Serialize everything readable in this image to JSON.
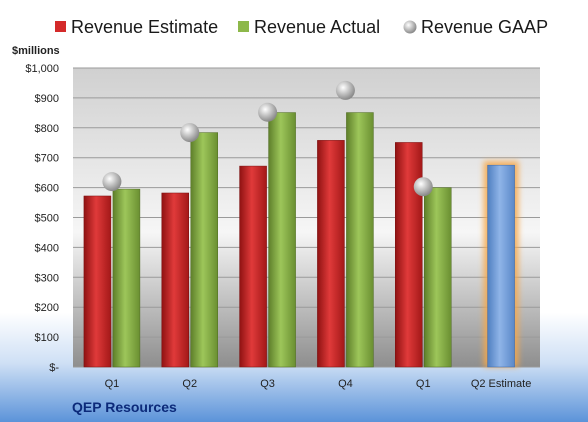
{
  "company": "QEP Resources",
  "chart_data": {
    "type": "bar",
    "title": "",
    "xlabel": "",
    "ylabel": "$millions",
    "ylim": [
      0,
      1000
    ],
    "yticks": [
      0,
      100,
      200,
      300,
      400,
      500,
      600,
      700,
      800,
      900,
      1000
    ],
    "ytick_labels": [
      "$-",
      "$100",
      "$200",
      "$300",
      "$400",
      "$500",
      "$600",
      "$700",
      "$800",
      "$900",
      "$1,000"
    ],
    "categories": [
      "Q1",
      "Q2",
      "Q3",
      "Q4",
      "Q1",
      "Q2 Estimate"
    ],
    "grid": true,
    "legend_position": "top",
    "series": [
      {
        "name": "Revenue Estimate",
        "kind": "bar",
        "color": "#d42a2a",
        "values": [
          572,
          582,
          672,
          758,
          751,
          null
        ]
      },
      {
        "name": "Revenue Actual",
        "kind": "bar",
        "color": "#8db84a",
        "values": [
          595,
          784,
          851,
          851,
          600,
          null
        ]
      },
      {
        "name": "Revenue GAAP",
        "kind": "marker",
        "color": "#b8b8b8",
        "values": [
          620,
          784,
          852,
          925,
          603,
          null
        ]
      },
      {
        "name": "Q2 Estimate",
        "kind": "highlight-bar",
        "color": "#7fa6dc",
        "values": [
          null,
          null,
          null,
          null,
          null,
          675
        ]
      }
    ]
  }
}
